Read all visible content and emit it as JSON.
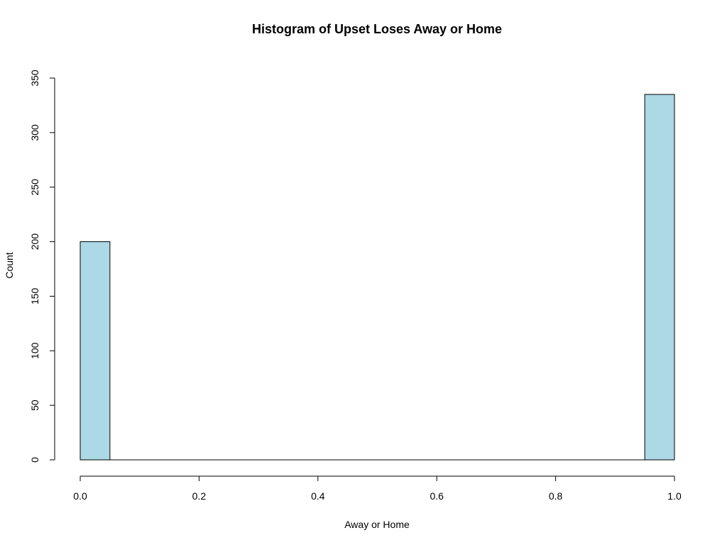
{
  "chart_data": {
    "type": "bar",
    "title": "Histogram of Upset Loses Away or Home",
    "xlabel": "Away or Home",
    "ylabel": "Count",
    "bins": [
      {
        "x0": 0.0,
        "x1": 0.05,
        "count": 200
      },
      {
        "x0": 0.95,
        "x1": 1.0,
        "count": 335
      }
    ],
    "xlim": [
      0.0,
      1.0
    ],
    "ylim": [
      0,
      350
    ],
    "xticks": [
      "0.0",
      "0.2",
      "0.4",
      "0.6",
      "0.8",
      "1.0"
    ],
    "yticks": [
      "0",
      "50",
      "100",
      "150",
      "200",
      "250",
      "300",
      "350"
    ],
    "grid": false,
    "colors": {
      "bar_fill": "#add8e6",
      "bar_stroke": "#000000"
    }
  }
}
